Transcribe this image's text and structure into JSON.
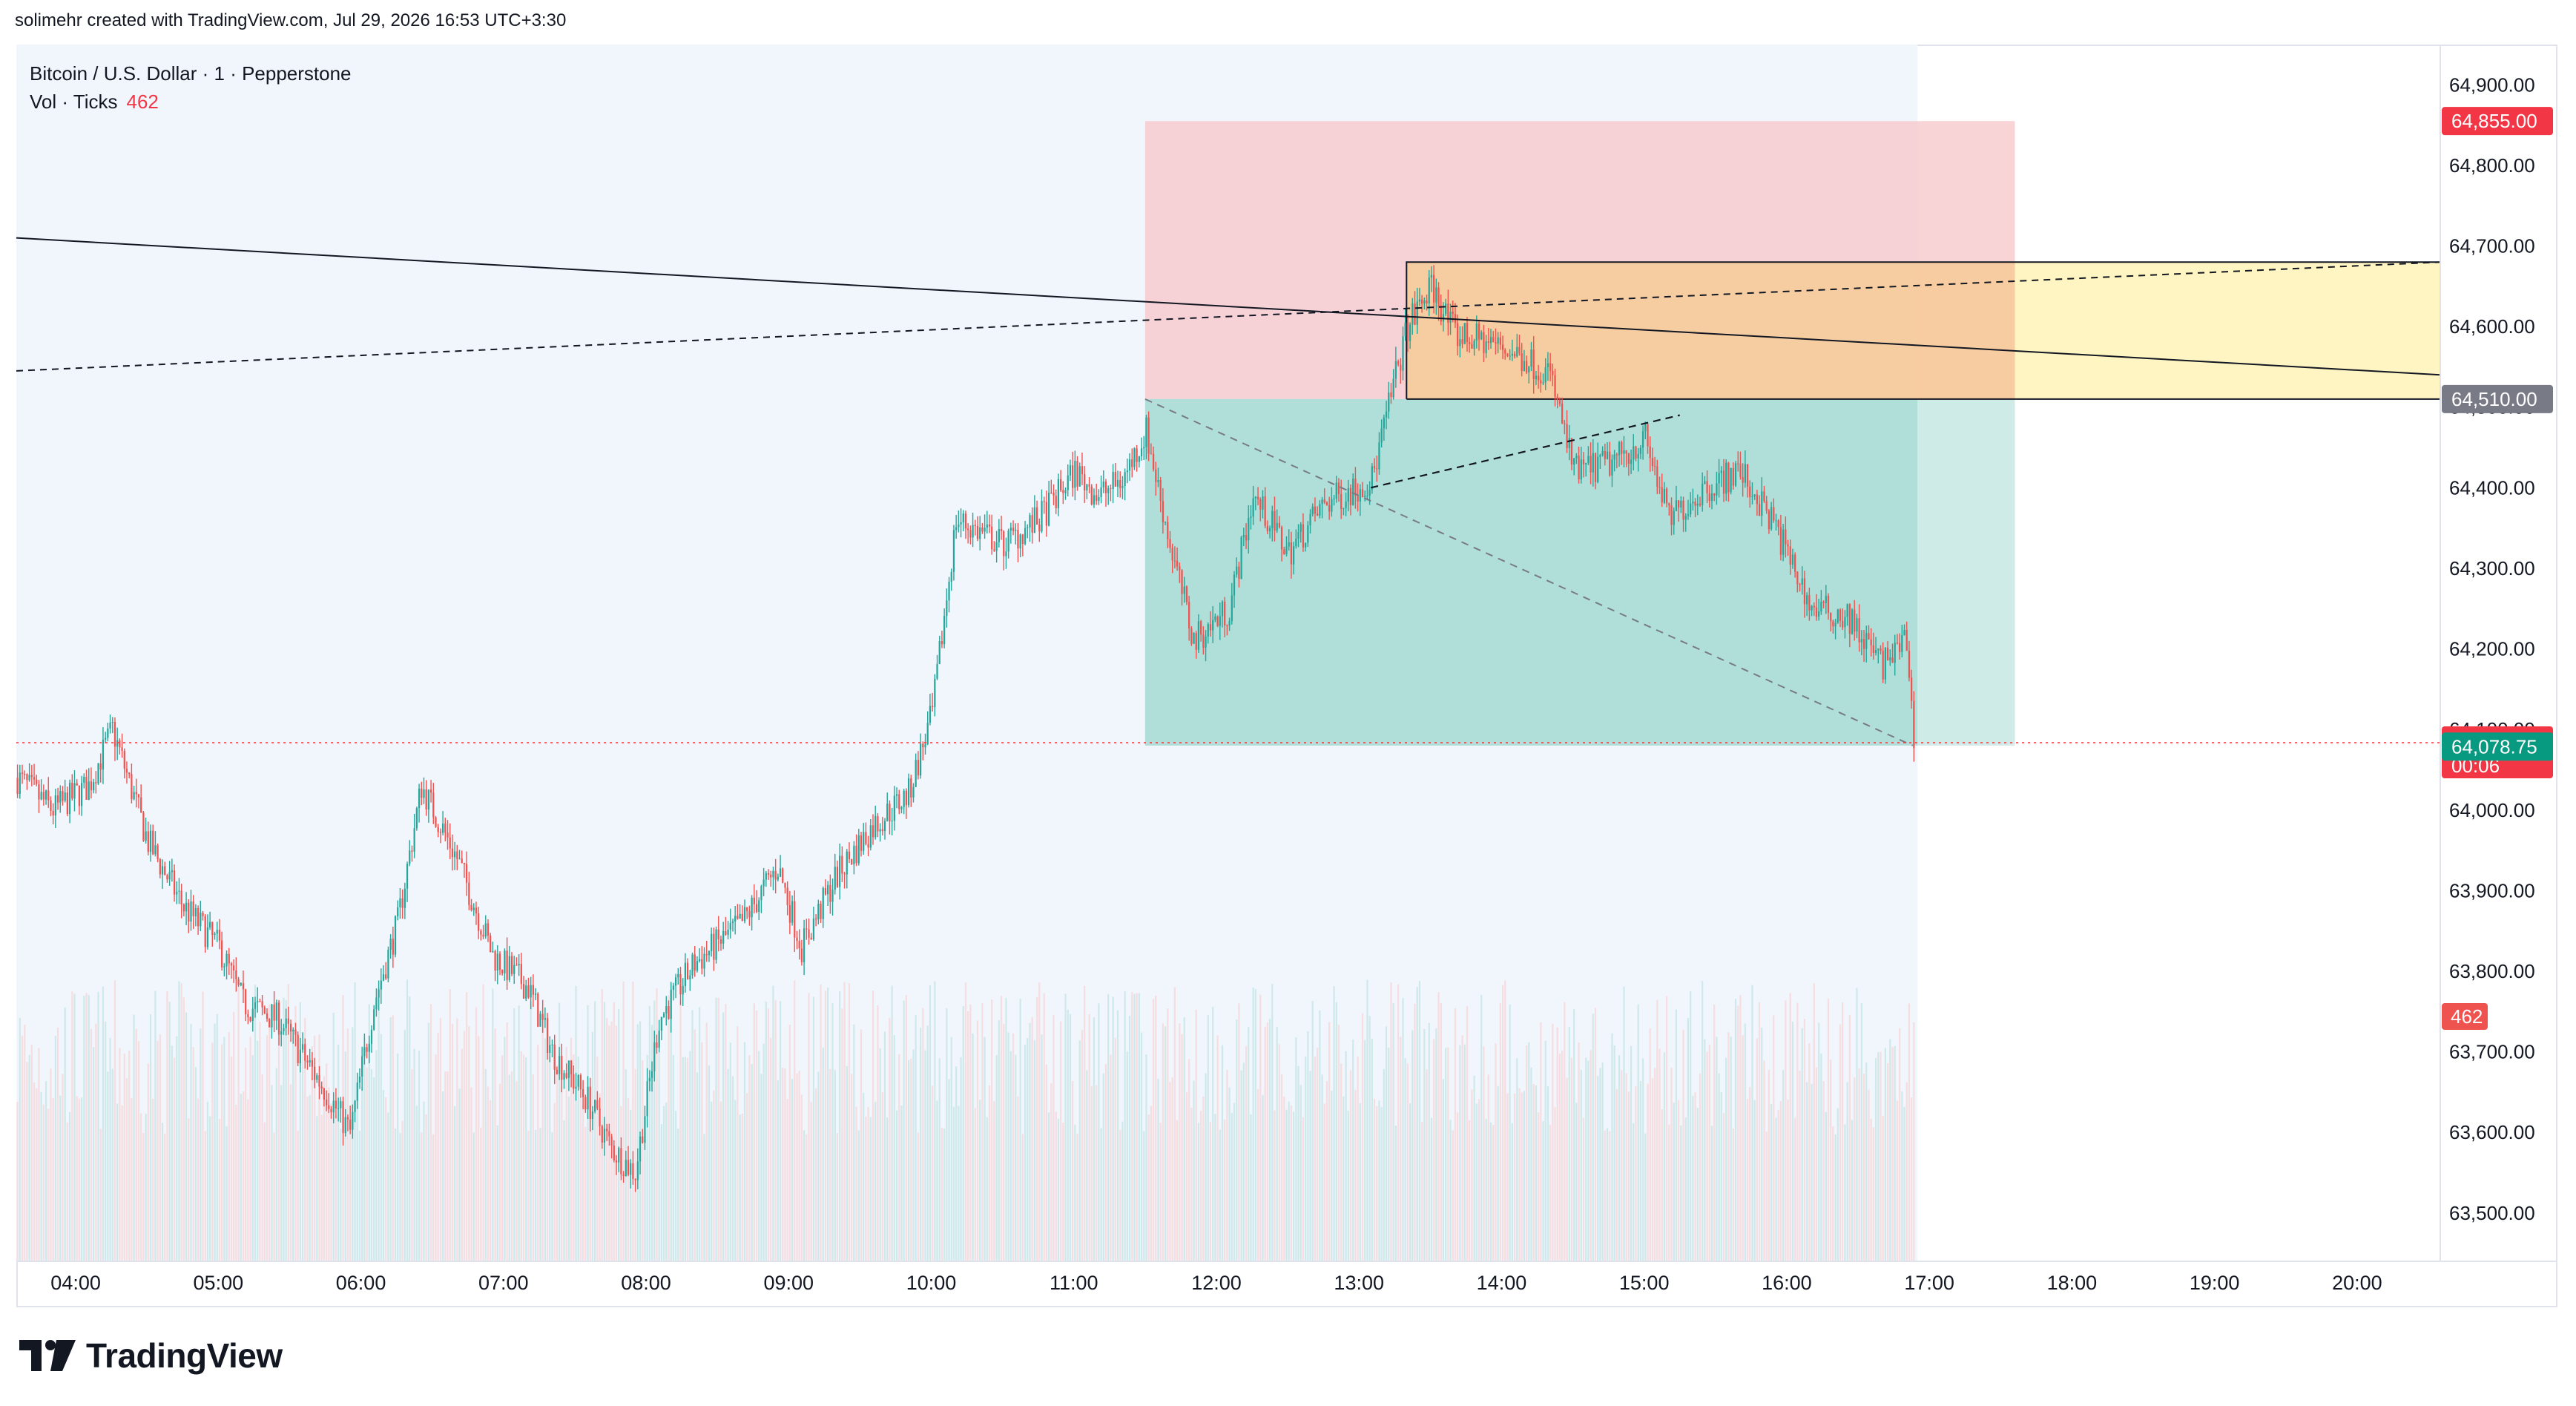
{
  "header": {
    "attribution": "solimehr created with TradingView.com, Jul 29, 2026 16:53 UTC+3:30"
  },
  "legend": {
    "symbol_line": "Bitcoin / U.S. Dollar · 1 · Pepperstone",
    "volume_label": "Vol · Ticks",
    "volume_value": "462"
  },
  "footer": {
    "brand": "TradingView"
  },
  "colors": {
    "up": "#26a69a",
    "down": "#ef5350",
    "stop_zone": "#f7c5c9",
    "target_zone": "#a8dbd4",
    "supply_box": "#f5c98f",
    "supply_extension": "#fff5c2",
    "pre_entry_shading": "#f1f6fd",
    "last_price": "#f23645",
    "bid_label": "#089981",
    "entry_label": "#787b86"
  },
  "price_labels": {
    "stop": "64,855.00",
    "entry": "64,510.00",
    "last": "64,083.59",
    "countdown": "00:06",
    "bid": "64,078.75",
    "volume": "462"
  },
  "chart_data": {
    "type": "candlestick",
    "symbol": "Bitcoin / U.S. Dollar",
    "interval": "1",
    "source": "Pepperstone",
    "x_ticks": [
      "04:00",
      "05:00",
      "06:00",
      "07:00",
      "08:00",
      "09:00",
      "10:00",
      "11:00",
      "12:00",
      "13:00",
      "14:00",
      "15:00",
      "16:00",
      "17:00",
      "18:00",
      "19:00",
      "20:00"
    ],
    "x_range": [
      "03:35",
      "20:35"
    ],
    "y_ticks": [
      63500,
      63600,
      63700,
      63800,
      63900,
      64000,
      64100,
      64200,
      64300,
      64400,
      64500,
      64600,
      64700,
      64800,
      64900
    ],
    "y_tick_labels": [
      "63,500.00",
      "63,600.00",
      "63,700.00",
      "63,800.00",
      "63,900.00",
      "64,000.00",
      "64,100.00",
      "64,200.00",
      "64,300.00",
      "64,400.00",
      "64,500.00",
      "64,600.00",
      "64,700.00",
      "64,800.00",
      "64,900.00"
    ],
    "ylim": [
      63440,
      64950
    ],
    "price_path": [
      [
        "03:35",
        64040
      ],
      [
        "03:50",
        64000
      ],
      [
        "04:05",
        64030
      ],
      [
        "04:15",
        64100
      ],
      [
        "04:30",
        63960
      ],
      [
        "04:45",
        63880
      ],
      [
        "05:00",
        63830
      ],
      [
        "05:10",
        63760
      ],
      [
        "05:25",
        63740
      ],
      [
        "05:45",
        63650
      ],
      [
        "05:55",
        63600
      ],
      [
        "06:05",
        63760
      ],
      [
        "06:15",
        63860
      ],
      [
        "06:25",
        64030
      ],
      [
        "06:40",
        63940
      ],
      [
        "06:55",
        63820
      ],
      [
        "07:10",
        63780
      ],
      [
        "07:20",
        63700
      ],
      [
        "07:35",
        63640
      ],
      [
        "07:45",
        63580
      ],
      [
        "07:55",
        63550
      ],
      [
        "08:05",
        63740
      ],
      [
        "08:20",
        63810
      ],
      [
        "08:40",
        63860
      ],
      [
        "08:55",
        63930
      ],
      [
        "09:05",
        63830
      ],
      [
        "09:20",
        63920
      ],
      [
        "09:35",
        63980
      ],
      [
        "09:50",
        64020
      ],
      [
        "10:00",
        64120
      ],
      [
        "10:10",
        64360
      ],
      [
        "10:30",
        64330
      ],
      [
        "10:45",
        64360
      ],
      [
        "11:00",
        64420
      ],
      [
        "11:10",
        64390
      ],
      [
        "11:20",
        64410
      ],
      [
        "11:30",
        64470
      ],
      [
        "11:40",
        64330
      ],
      [
        "11:50",
        64210
      ],
      [
        "12:05",
        64250
      ],
      [
        "12:15",
        64390
      ],
      [
        "12:30",
        64320
      ],
      [
        "12:45",
        64380
      ],
      [
        "13:05",
        64410
      ],
      [
        "13:15",
        64540
      ],
      [
        "13:20",
        64600
      ],
      [
        "13:30",
        64650
      ],
      [
        "13:40",
        64590
      ],
      [
        "13:55",
        64580
      ],
      [
        "14:10",
        64560
      ],
      [
        "14:20",
        64540
      ],
      [
        "14:30",
        64420
      ],
      [
        "14:45",
        64430
      ],
      [
        "15:00",
        64460
      ],
      [
        "15:10",
        64360
      ],
      [
        "15:25",
        64400
      ],
      [
        "15:40",
        64420
      ],
      [
        "15:55",
        64350
      ],
      [
        "16:10",
        64250
      ],
      [
        "16:25",
        64240
      ],
      [
        "16:40",
        64180
      ],
      [
        "16:50",
        64210
      ],
      [
        "16:53",
        64083.59
      ]
    ],
    "annotations": {
      "position": {
        "type": "long",
        "entry": 64510,
        "stop": 64855,
        "target": 64080,
        "start": "11:30",
        "end": "17:36"
      },
      "supply_box": {
        "top": 64680,
        "bottom": 64510,
        "start": "13:20",
        "extends_right": true
      },
      "descending_trendline": {
        "from": [
          "03:35",
          64710
        ],
        "to": [
          "20:35",
          64540
        ]
      },
      "dashed_trendline": {
        "from": [
          "03:35",
          64545
        ],
        "to": [
          "20:35",
          64680
        ]
      }
    },
    "last_price": 64083.59,
    "bid": 64078.75,
    "volume_last": 462
  }
}
